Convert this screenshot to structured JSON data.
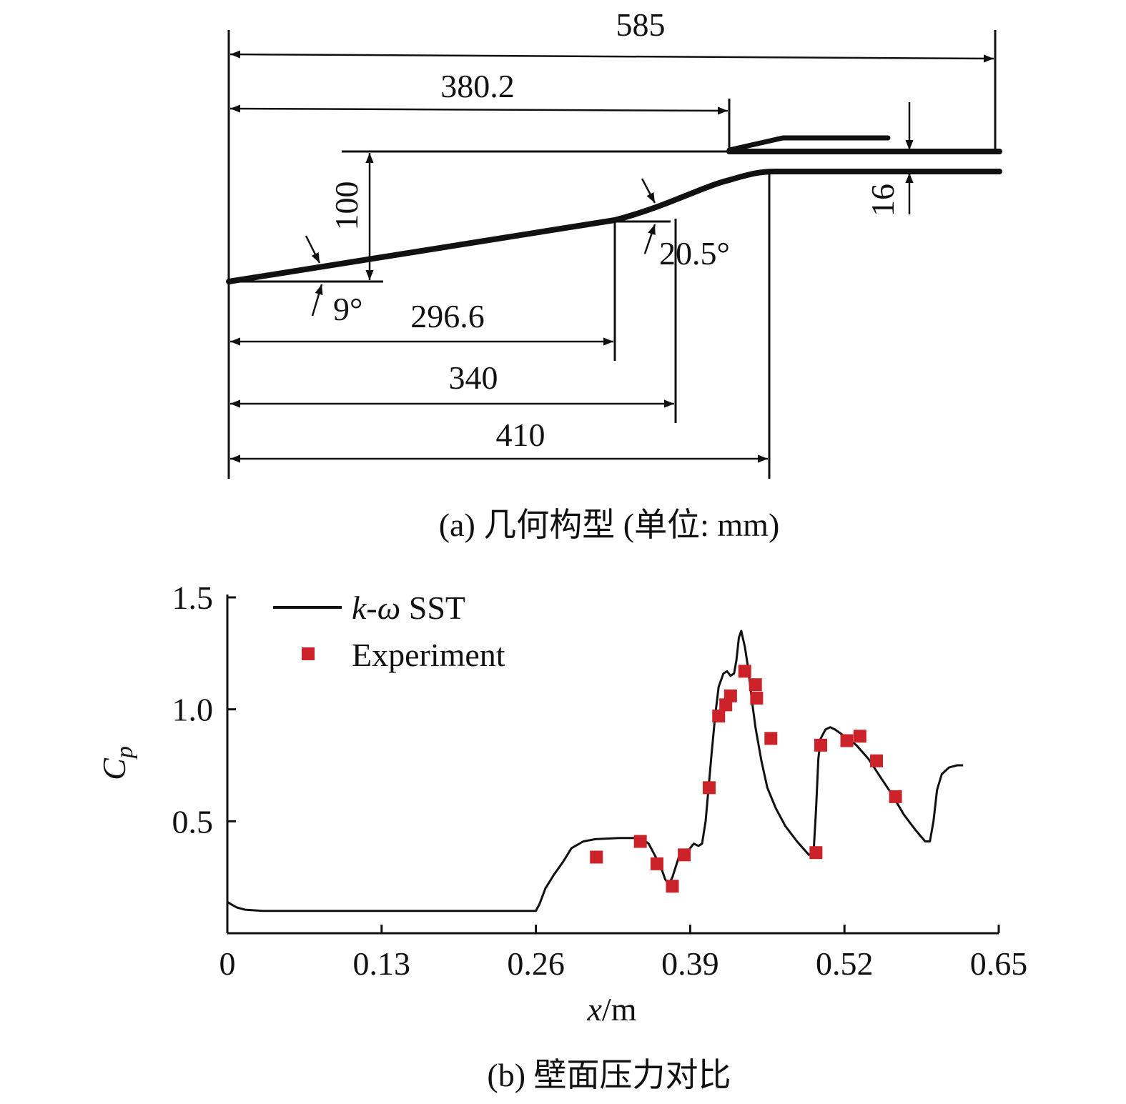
{
  "figure_a": {
    "caption": "(a) 几何构型 (单位: mm)",
    "dimensions": {
      "total_length": "585",
      "cowl_lip": "380.2",
      "height": "100",
      "gap": "16",
      "angle1": "9°",
      "angle2": "20.5°",
      "ramp1_end": "296.6",
      "ramp2_end": "340",
      "throat": "410"
    }
  },
  "figure_b": {
    "caption": "(b) 壁面压力对比",
    "ylabel_main": "C",
    "ylabel_sub": "p",
    "xlabel_italic": "x",
    "xlabel_rest": "/m",
    "legend": {
      "line_label_italic": "k",
      "line_label_dash": "-",
      "line_label_omega": "ω",
      "line_label_rest": " SST",
      "marker_label": "Experiment"
    },
    "colors": {
      "line": "#111111",
      "marker": "#cc2229",
      "axis": "#111111"
    }
  },
  "chart_data": {
    "type": "line",
    "title": "",
    "xlabel": "x/m",
    "ylabel": "Cp",
    "xlim": [
      0,
      0.65
    ],
    "ylim": [
      0,
      1.5
    ],
    "x_ticks": [
      0,
      0.13,
      0.26,
      0.39,
      0.52,
      0.65
    ],
    "x_tick_labels": [
      "0",
      "0.13",
      "0.26",
      "0.39",
      "0.52",
      "0.65"
    ],
    "y_ticks": [
      0.5,
      1.0,
      1.5
    ],
    "y_tick_labels": [
      "0.5",
      "1.0",
      "1.5"
    ],
    "legend_position": "top-left",
    "series": [
      {
        "name": "k-ω SST",
        "kind": "line",
        "x": [
          0.0,
          0.003,
          0.008,
          0.015,
          0.03,
          0.1,
          0.2,
          0.255,
          0.26,
          0.263,
          0.268,
          0.275,
          0.283,
          0.29,
          0.3,
          0.31,
          0.33,
          0.345,
          0.35,
          0.355,
          0.36,
          0.365,
          0.369,
          0.372,
          0.375,
          0.378,
          0.381,
          0.385,
          0.388,
          0.39,
          0.393,
          0.397,
          0.4,
          0.403,
          0.405,
          0.408,
          0.411,
          0.414,
          0.418,
          0.421,
          0.424,
          0.427,
          0.429,
          0.431,
          0.433,
          0.436,
          0.439,
          0.442,
          0.445,
          0.45,
          0.455,
          0.462,
          0.47,
          0.48,
          0.49,
          0.494,
          0.496,
          0.498,
          0.5,
          0.504,
          0.508,
          0.512,
          0.52,
          0.53,
          0.54,
          0.55,
          0.56,
          0.57,
          0.58,
          0.588,
          0.592,
          0.595,
          0.598,
          0.602,
          0.608,
          0.615,
          0.62
        ],
        "values": [
          0.14,
          0.13,
          0.115,
          0.105,
          0.1,
          0.1,
          0.1,
          0.1,
          0.1,
          0.13,
          0.2,
          0.26,
          0.32,
          0.38,
          0.41,
          0.42,
          0.425,
          0.425,
          0.42,
          0.4,
          0.35,
          0.3,
          0.24,
          0.22,
          0.25,
          0.3,
          0.35,
          0.37,
          0.36,
          0.38,
          0.4,
          0.39,
          0.4,
          0.5,
          0.62,
          0.8,
          0.97,
          1.1,
          1.16,
          1.17,
          1.15,
          1.16,
          1.22,
          1.32,
          1.35,
          1.28,
          1.18,
          1.04,
          0.92,
          0.77,
          0.65,
          0.56,
          0.48,
          0.41,
          0.35,
          0.36,
          0.55,
          0.78,
          0.87,
          0.91,
          0.92,
          0.91,
          0.88,
          0.84,
          0.78,
          0.7,
          0.62,
          0.53,
          0.46,
          0.41,
          0.41,
          0.5,
          0.64,
          0.71,
          0.74,
          0.75,
          0.75
        ]
      },
      {
        "name": "Experiment",
        "kind": "scatter",
        "x": [
          0.311,
          0.348,
          0.362,
          0.375,
          0.385,
          0.406,
          0.414,
          0.42,
          0.424,
          0.436,
          0.445,
          0.446,
          0.458,
          0.496,
          0.5,
          0.522,
          0.533,
          0.547,
          0.563
        ],
        "values": [
          0.34,
          0.41,
          0.31,
          0.21,
          0.35,
          0.65,
          0.97,
          1.02,
          1.06,
          1.17,
          1.11,
          1.05,
          0.87,
          0.36,
          0.84,
          0.86,
          0.88,
          0.77,
          0.61
        ]
      }
    ]
  }
}
